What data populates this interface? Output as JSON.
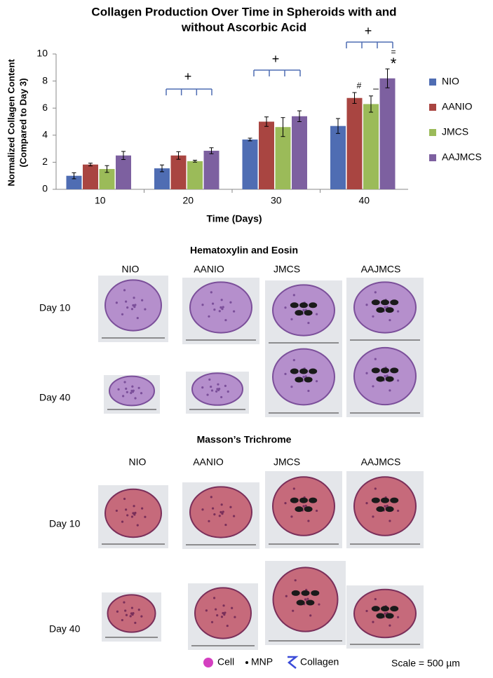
{
  "chart_data": {
    "type": "bar",
    "title": [
      "Collagen Production Over Time in Spheroids with and",
      "without Ascorbic Acid"
    ],
    "xlabel": "Time (Days)",
    "ylabel": [
      "Normalized Collagen Content",
      "(Compared to Day 3)"
    ],
    "categories": [
      "10",
      "20",
      "30",
      "40"
    ],
    "series": [
      {
        "name": "NIO",
        "color": "#4f6db3",
        "values": [
          1.0,
          1.55,
          3.68,
          4.68
        ],
        "errors": [
          0.22,
          0.25,
          0.1,
          0.55
        ]
      },
      {
        "name": "AANIO",
        "color": "#a94541",
        "values": [
          1.83,
          2.5,
          5.0,
          6.75
        ],
        "errors": [
          0.1,
          0.28,
          0.35,
          0.4
        ]
      },
      {
        "name": "JMCS",
        "color": "#9bbb59",
        "values": [
          1.5,
          2.08,
          4.6,
          6.3
        ],
        "errors": [
          0.25,
          0.07,
          0.7,
          0.6
        ]
      },
      {
        "name": "AAJMCS",
        "color": "#7d60a0",
        "values": [
          2.5,
          2.85,
          5.4,
          8.2
        ],
        "errors": [
          0.3,
          0.22,
          0.4,
          0.7
        ]
      }
    ],
    "ylim": [
      0,
      10
    ],
    "yticks": [
      0,
      2,
      4,
      6,
      8,
      10
    ],
    "grid": false,
    "legend": "right",
    "annotations": [
      "+",
      "+",
      "+",
      "#",
      "–",
      "*",
      "="
    ]
  },
  "sections": [
    {
      "title": "Hematoxylin and Eosin",
      "columns": [
        "NIO",
        "AANIO",
        "JMCS",
        "AAJMCS"
      ],
      "rows": [
        "Day 10",
        "Day 40"
      ]
    },
    {
      "title": "Masson’s Trichrome",
      "columns": [
        "NIO",
        "AANIO",
        "JMCS",
        "AAJMCS"
      ],
      "rows": [
        "Day 10",
        "Day 40"
      ]
    }
  ],
  "key": {
    "items": [
      "Cell",
      "MNP",
      "Collagen"
    ],
    "scale": "Scale = 500 µm"
  }
}
